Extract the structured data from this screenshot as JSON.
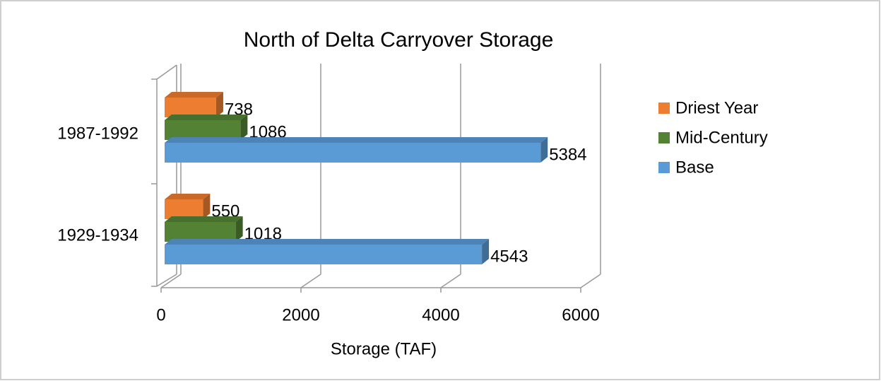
{
  "chart_data": {
    "type": "bar3d_horizontal",
    "title": "North of Delta Carryover Storage",
    "x_label": "Storage (TAF)",
    "categories": [
      "1987-1992",
      "1929-1934"
    ],
    "series": [
      {
        "name": "Driest Year",
        "color": "#ed7d31",
        "values": [
          738,
          550
        ]
      },
      {
        "name": "Mid-Century",
        "color": "#548235",
        "values": [
          1086,
          1018
        ]
      },
      {
        "name": "Base",
        "color": "#5b9bd5",
        "values": [
          5384,
          4543
        ]
      }
    ],
    "xlim": [
      0,
      6000
    ],
    "xticks": [
      0,
      2000,
      4000,
      6000
    ],
    "grid": true,
    "legend": "right"
  }
}
